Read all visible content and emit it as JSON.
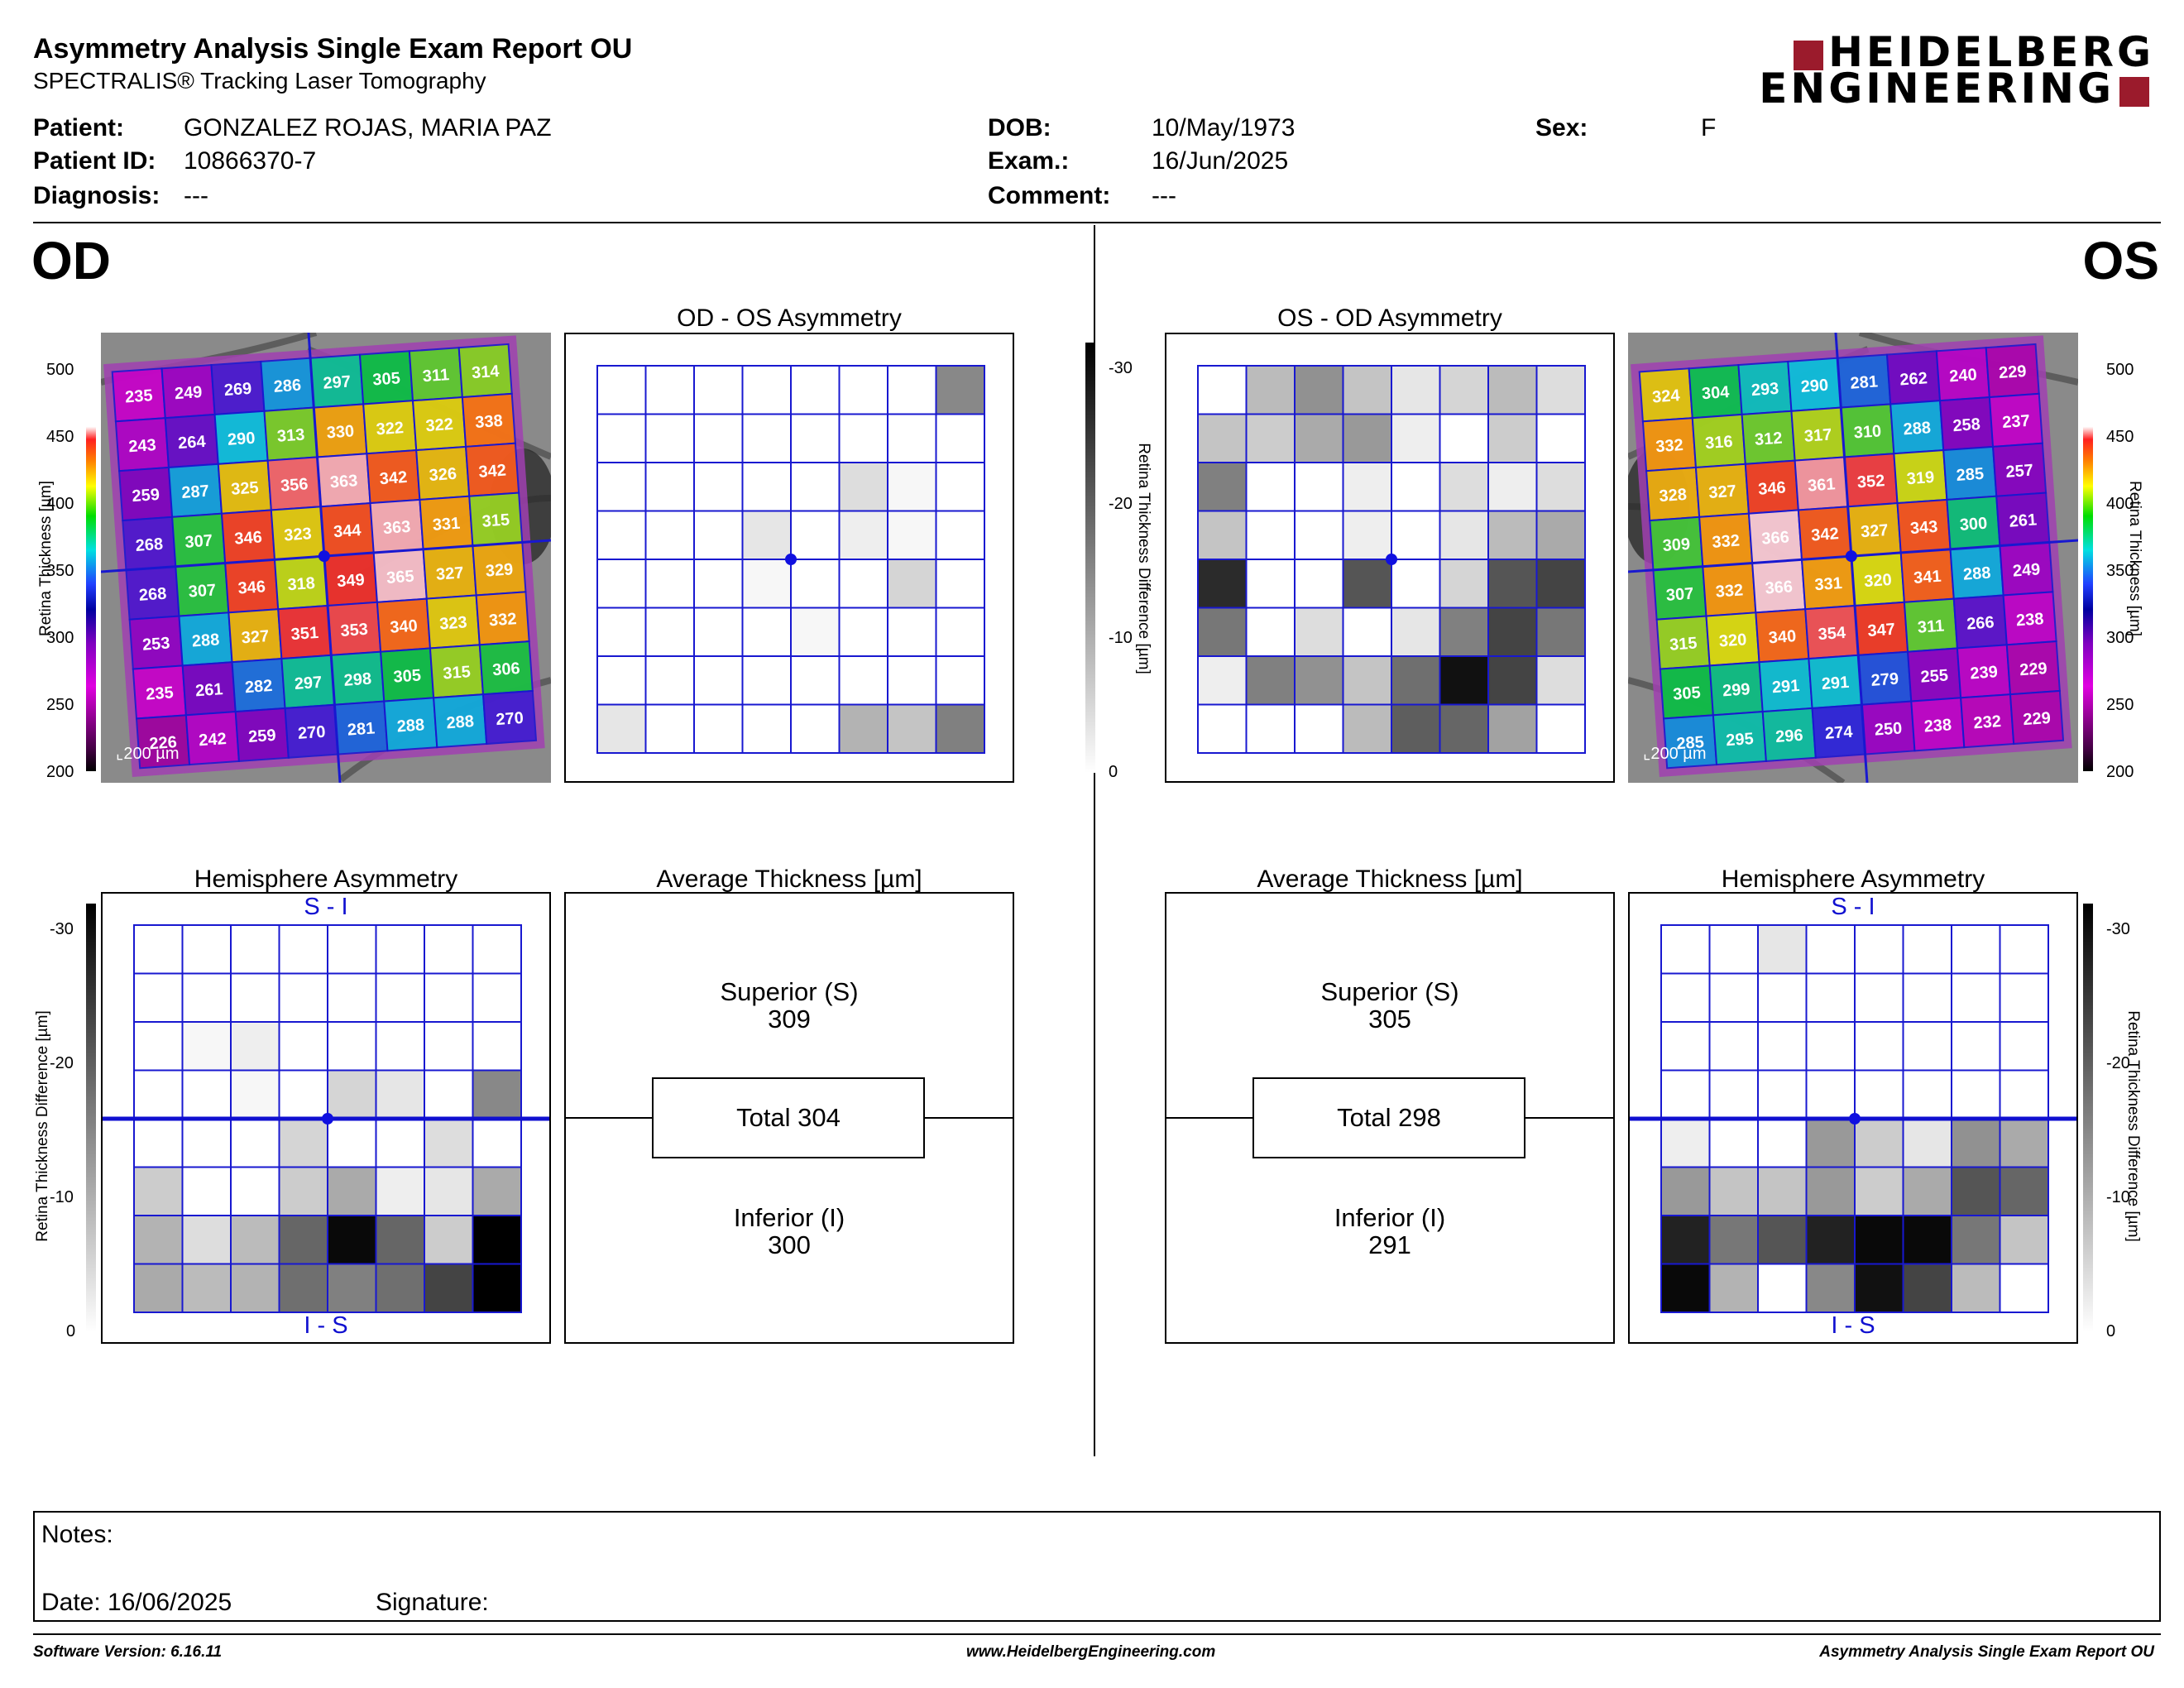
{
  "header": {
    "title": "Asymmetry Analysis Single Exam Report OU",
    "subtitle": "SPECTRALIS® Tracking Laser Tomography",
    "logo_line1": "HEIDELBERG",
    "logo_line2": "ENGINEERING"
  },
  "patient": {
    "patient_label": "Patient:",
    "patient_value": "GONZALEZ ROJAS, MARIA PAZ",
    "id_label": "Patient ID:",
    "id_value": "10866370-7",
    "diagnosis_label": "Diagnosis:",
    "diagnosis_value": "---",
    "dob_label": "DOB:",
    "dob_value": "10/May/1973",
    "exam_label": "Exam.:",
    "exam_value": "16/Jun/2025",
    "comment_label": "Comment:",
    "comment_value": "---",
    "sex_label": "Sex:",
    "sex_value": "F"
  },
  "od": {
    "label": "OD",
    "asym_title": "OD - OS Asymmetry",
    "hemi_title": "Hemisphere Asymmetry",
    "avg_title": "Average Thickness [µm]",
    "hemi_top": "S - I",
    "hemi_bottom": "I - S",
    "superior_label": "Superior (S)",
    "superior_value": "309",
    "total_label": "Total 304",
    "inferior_label": "Inferior (I)",
    "inferior_value": "300",
    "scale": "200 µm",
    "thickness_grid": [
      [
        235,
        249,
        269,
        286,
        297,
        305,
        311,
        314
      ],
      [
        243,
        264,
        290,
        313,
        330,
        322,
        322,
        338
      ],
      [
        259,
        287,
        325,
        356,
        363,
        342,
        326,
        342
      ],
      [
        268,
        307,
        346,
        323,
        344,
        363,
        331,
        315
      ],
      [
        268,
        307,
        346,
        318,
        349,
        365,
        327,
        329
      ],
      [
        253,
        288,
        327,
        351,
        353,
        340,
        323,
        332
      ],
      [
        235,
        261,
        282,
        297,
        298,
        305,
        315,
        306
      ],
      [
        226,
        242,
        259,
        270,
        281,
        288,
        288,
        270
      ]
    ],
    "asym_shades": [
      [
        0,
        0,
        0,
        0,
        0,
        0,
        0,
        14
      ],
      [
        0,
        0,
        0,
        0,
        0,
        0,
        0,
        0
      ],
      [
        0,
        0,
        0,
        0,
        0,
        4,
        1,
        0
      ],
      [
        0,
        0,
        0,
        3,
        0,
        2,
        1,
        0
      ],
      [
        0,
        0,
        0,
        1,
        0,
        0,
        5,
        0
      ],
      [
        0,
        0,
        0,
        0,
        1,
        0,
        0,
        0
      ],
      [
        0,
        0,
        0,
        0,
        0,
        0,
        0,
        0
      ],
      [
        3,
        0,
        0,
        0,
        0,
        9,
        7,
        15
      ]
    ],
    "hemi_shades": [
      [
        0,
        0,
        0,
        0,
        0,
        0,
        0,
        0
      ],
      [
        0,
        0,
        0,
        0,
        0,
        0,
        0,
        0
      ],
      [
        0,
        1,
        2,
        0,
        0,
        0,
        0,
        0
      ],
      [
        0,
        0,
        1,
        0,
        5,
        3,
        0,
        14
      ],
      [
        0,
        0,
        0,
        5,
        0,
        0,
        4,
        0
      ],
      [
        6,
        0,
        0,
        6,
        10,
        2,
        3,
        10
      ],
      [
        9,
        4,
        8,
        18,
        29,
        18,
        6,
        30
      ],
      [
        10,
        8,
        9,
        17,
        15,
        17,
        22,
        30
      ]
    ]
  },
  "os": {
    "label": "OS",
    "asym_title": "OS - OD Asymmetry",
    "hemi_title": "Hemisphere Asymmetry",
    "avg_title": "Average Thickness [µm]",
    "hemi_top": "S - I",
    "hemi_bottom": "I - S",
    "superior_label": "Superior (S)",
    "superior_value": "305",
    "total_label": "Total 298",
    "inferior_label": "Inferior (I)",
    "inferior_value": "291",
    "scale": "200 µm",
    "thickness_grid": [
      [
        324,
        304,
        293,
        290,
        281,
        262,
        240,
        229
      ],
      [
        332,
        316,
        312,
        317,
        310,
        288,
        258,
        237
      ],
      [
        328,
        327,
        346,
        361,
        352,
        319,
        285,
        257
      ],
      [
        309,
        332,
        366,
        342,
        327,
        343,
        300,
        261
      ],
      [
        307,
        332,
        366,
        331,
        320,
        341,
        288,
        249
      ],
      [
        315,
        320,
        340,
        354,
        347,
        311,
        266,
        238
      ],
      [
        305,
        299,
        291,
        291,
        279,
        255,
        239,
        229
      ],
      [
        285,
        295,
        296,
        274,
        250,
        238,
        232,
        229
      ]
    ],
    "asym_shades": [
      [
        0,
        8,
        13,
        7,
        3,
        5,
        8,
        4
      ],
      [
        7,
        6,
        10,
        12,
        2,
        0,
        6,
        0
      ],
      [
        15,
        0,
        0,
        2,
        0,
        4,
        2,
        4
      ],
      [
        7,
        0,
        0,
        2,
        0,
        3,
        8,
        10
      ],
      [
        25,
        0,
        0,
        20,
        0,
        5,
        20,
        22
      ],
      [
        16,
        0,
        4,
        0,
        3,
        15,
        22,
        16
      ],
      [
        2,
        15,
        13,
        7,
        17,
        28,
        22,
        4
      ],
      [
        0,
        0,
        0,
        8,
        19,
        18,
        11,
        0
      ]
    ],
    "hemi_shades": [
      [
        0,
        0,
        3,
        0,
        0,
        0,
        0,
        0
      ],
      [
        0,
        0,
        0,
        0,
        0,
        0,
        0,
        0
      ],
      [
        0,
        0,
        0,
        0,
        0,
        0,
        0,
        0
      ],
      [
        0,
        0,
        0,
        0,
        0,
        0,
        0,
        0
      ],
      [
        2,
        0,
        0,
        12,
        6,
        3,
        13,
        10
      ],
      [
        12,
        7,
        7,
        12,
        6,
        10,
        20,
        18
      ],
      [
        26,
        16,
        20,
        26,
        29,
        29,
        16,
        7
      ],
      [
        29,
        9,
        0,
        14,
        28,
        22,
        8,
        0
      ]
    ]
  },
  "colorbar": {
    "thickness_ticks": [
      "500",
      "450",
      "400",
      "350",
      "300",
      "250",
      "200"
    ],
    "thickness_title": "Retina Thickness [µm]",
    "diff_ticks": [
      "-30",
      "-20",
      "-10",
      "0"
    ],
    "diff_title": "Retina Thickness Difference [µm]"
  },
  "notes": {
    "notes_label": "Notes:",
    "date_label": "Date: 16/06/2025",
    "signature_label": "Signature:"
  },
  "footer": {
    "software": "Software Version: 6.16.11",
    "website": "www.HeidelbergEngineering.com",
    "report_name": "Asymmetry Analysis Single Exam Report OU"
  }
}
